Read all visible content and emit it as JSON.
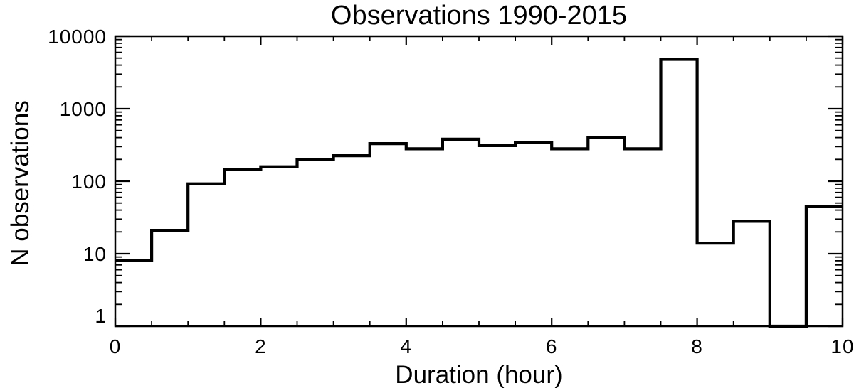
{
  "title": "Observations 1990-2015",
  "chart_data": {
    "type": "bar",
    "style": "step-histogram-outline",
    "title": "Observations 1990-2015",
    "xlabel": "Duration (hour)",
    "ylabel": "N observations",
    "xlim": [
      0,
      10
    ],
    "ylim": [
      1,
      10000
    ],
    "yscale": "log",
    "grid": false,
    "legend": "none",
    "line_color": "#000000",
    "background": "#ffffff",
    "x_major_ticks": [
      0,
      2,
      4,
      6,
      8,
      10
    ],
    "x_minor_step": 0.5,
    "y_major_ticks": [
      1,
      10,
      100,
      1000,
      10000
    ],
    "bin_width": 0.5,
    "bin_edges": [
      0,
      0.5,
      1,
      1.5,
      2,
      2.5,
      3,
      3.5,
      4,
      4.5,
      5,
      5.5,
      6,
      6.5,
      7,
      7.5,
      8,
      8.5,
      9,
      9.5,
      10
    ],
    "values": [
      8,
      21,
      92,
      145,
      158,
      200,
      225,
      330,
      280,
      380,
      310,
      345,
      280,
      400,
      280,
      4800,
      14,
      28,
      1,
      45
    ]
  }
}
